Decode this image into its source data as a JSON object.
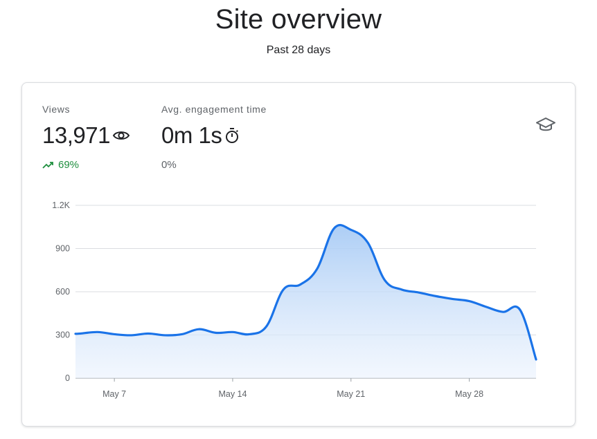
{
  "header": {
    "title": "Site overview",
    "subtitle": "Past 28 days"
  },
  "metrics": {
    "views": {
      "label": "Views",
      "value": "13,971",
      "icon": "eye-icon",
      "change": "69%",
      "change_direction": "up",
      "change_color": "#1e8e3e"
    },
    "engagement": {
      "label": "Avg. engagement time",
      "value": "0m 1s",
      "icon": "timer-icon",
      "change": "0%",
      "change_direction": "neutral",
      "change_color": "#5f6368"
    }
  },
  "learn_icon": "graduation-cap-icon",
  "chart_data": {
    "type": "area",
    "title": "",
    "xlabel": "",
    "ylabel": "",
    "ylim": [
      0,
      1200
    ],
    "yticks": [
      0,
      300,
      600,
      900,
      1200
    ],
    "ytick_labels": [
      "0",
      "300",
      "600",
      "900",
      "1.2K"
    ],
    "xtick_labels": [
      "May 7",
      "May 14",
      "May 21",
      "May 28"
    ],
    "xtick_days": [
      7,
      14,
      21,
      28
    ],
    "grid": true,
    "line_color": "#1a73e8",
    "series": [
      {
        "x": [
          5,
          6,
          7,
          8,
          9,
          10,
          11,
          12,
          13,
          14,
          15,
          16,
          17,
          18,
          19,
          20,
          21,
          22,
          23,
          24,
          25,
          26,
          27,
          28,
          29,
          30,
          31
        ],
        "values": [
          310,
          320,
          305,
          298,
          310,
          298,
          305,
          340,
          315,
          320,
          305,
          360,
          615,
          650,
          760,
          1040,
          1030,
          940,
          680,
          615,
          595,
          570,
          550,
          535,
          495,
          460,
          475
        ]
      }
    ],
    "final_value": 130
  }
}
